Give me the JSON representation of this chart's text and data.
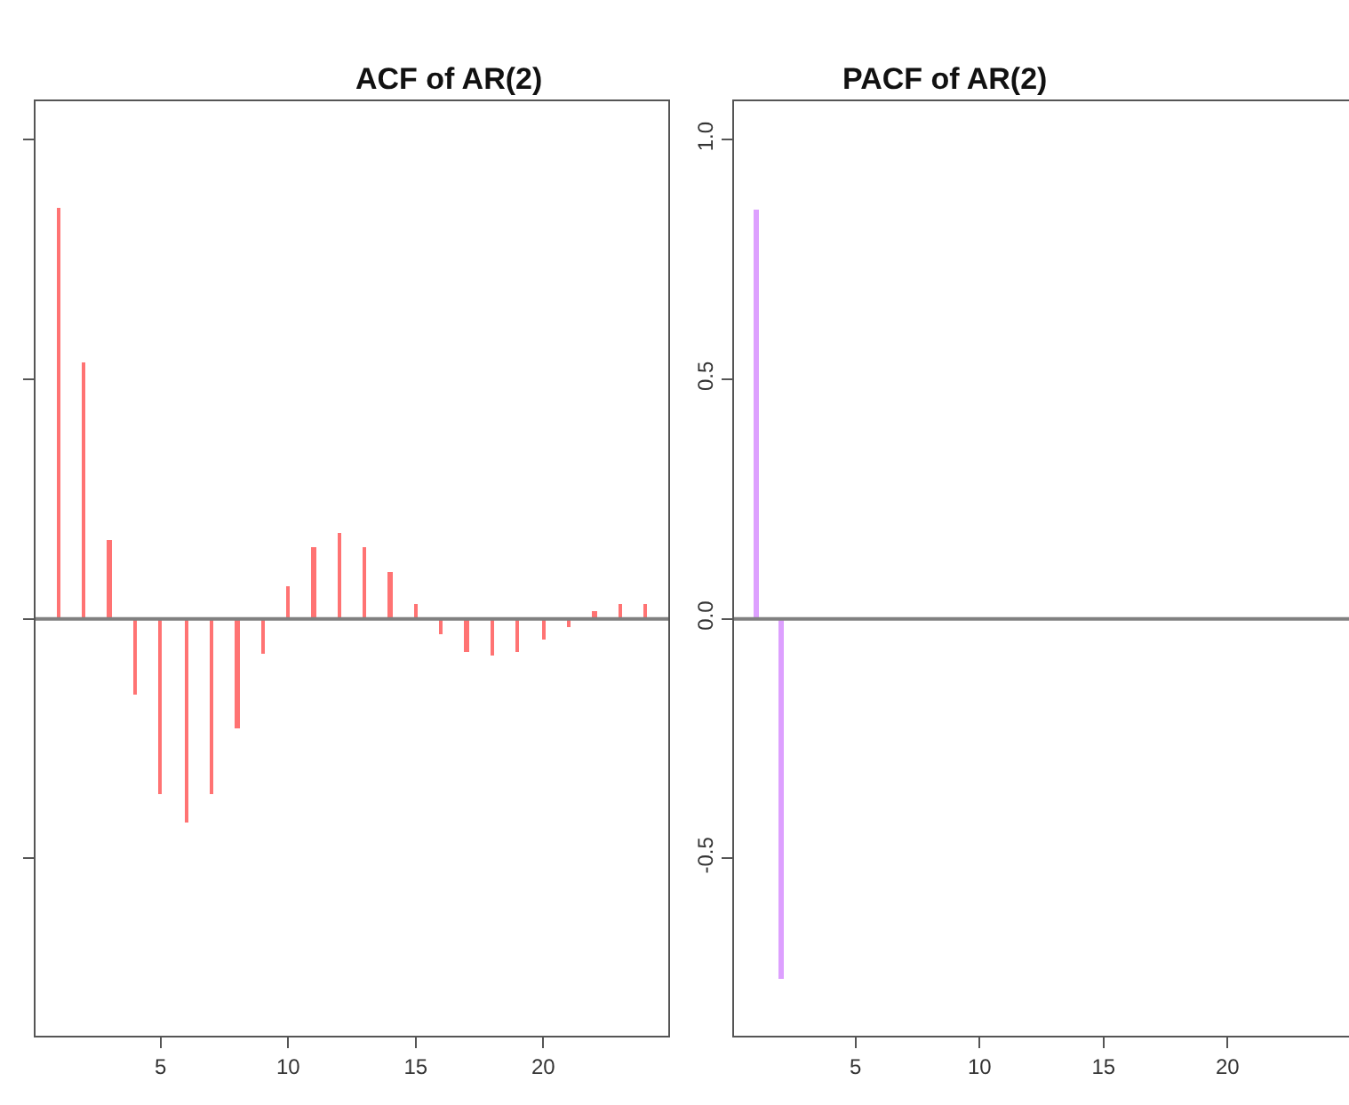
{
  "chart_data": [
    {
      "type": "bar",
      "title": "ACF of AR(2)",
      "x": [
        1,
        2,
        3,
        4,
        5,
        6,
        7,
        8,
        9,
        10,
        11,
        12,
        13,
        14,
        15,
        16,
        17,
        18,
        19,
        20,
        21,
        22,
        23,
        24
      ],
      "series": [
        {
          "color": "#ff7373",
          "values": [
            0.857,
            0.536,
            0.163,
            -0.16,
            -0.365,
            -0.425,
            -0.365,
            -0.23,
            -0.073,
            0.069,
            0.15,
            0.178,
            0.15,
            0.096,
            0.03,
            -0.032,
            -0.069,
            -0.077,
            -0.069,
            -0.044,
            -0.017,
            0.015,
            0.03,
            0.03
          ]
        }
      ],
      "xlim": [
        0.1,
        24.9
      ],
      "xticks": [
        5,
        10,
        15,
        20
      ],
      "ylim": [
        -0.87,
        1.08
      ],
      "yticks": [
        -0.5,
        0,
        0.5,
        1
      ],
      "tick_labels": "x",
      "ref_lines": [
        {
          "axis": "y",
          "value": 0,
          "color": "#808080"
        }
      ]
    },
    {
      "type": "bar",
      "title": "PACF of AR(2)",
      "x": [
        1,
        2
      ],
      "series": [
        {
          "color": "#dda0ff",
          "values": [
            0.854,
            -0.751
          ]
        }
      ],
      "xlim": [
        0.1,
        24.9
      ],
      "xticks": [
        5,
        10,
        15,
        20
      ],
      "ylim": [
        -0.87,
        1.08
      ],
      "yticks": [
        -0.5,
        {
          "value": 0,
          "label": "0.0"
        },
        0.5,
        {
          "value": 1,
          "label": "1.0"
        }
      ],
      "ref_lines": [
        {
          "axis": "y",
          "value": 0,
          "color": "#808080"
        }
      ]
    }
  ]
}
